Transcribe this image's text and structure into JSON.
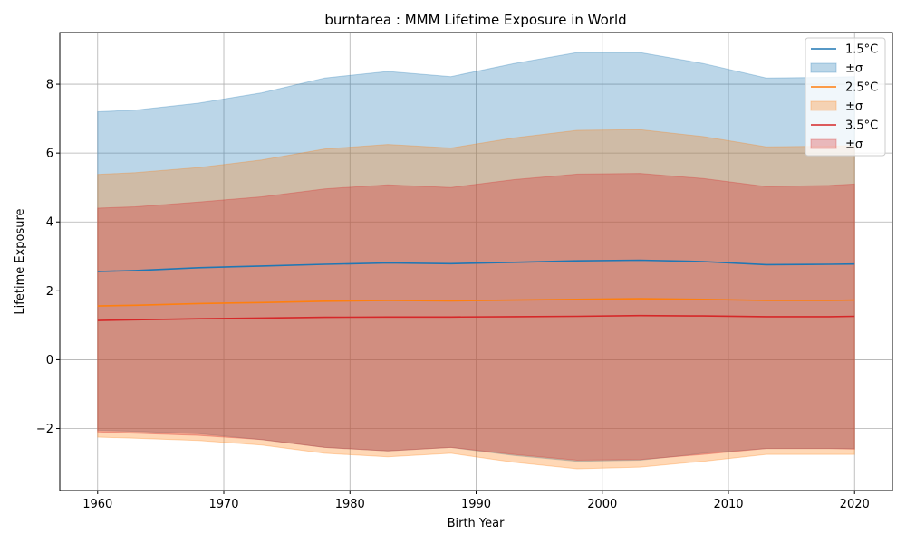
{
  "chart_data": {
    "type": "area",
    "title": "burntarea : MMM Lifetime Exposure in World",
    "xlabel": "Birth Year",
    "ylabel": "Lifetime Exposure",
    "xlim": [
      1957,
      2023
    ],
    "ylim": [
      -3.8,
      9.5
    ],
    "xticks": [
      1960,
      1970,
      1980,
      1990,
      2000,
      2010,
      2020
    ],
    "yticks": [
      -2,
      0,
      2,
      4,
      6,
      8
    ],
    "ytick_labels": [
      "−2",
      "0",
      "2",
      "4",
      "6",
      "8"
    ],
    "grid": true,
    "legend_position": "top-right",
    "x": [
      1960,
      1963,
      1968,
      1973,
      1978,
      1983,
      1988,
      1993,
      1998,
      2003,
      2008,
      2013,
      2018,
      2020
    ],
    "series": [
      {
        "name": "1.5°C",
        "band_name": "±σ",
        "color": "#1f77b4",
        "values": [
          2.56,
          2.59,
          2.67,
          2.72,
          2.77,
          2.81,
          2.79,
          2.83,
          2.87,
          2.89,
          2.85,
          2.76,
          2.77,
          2.78
        ],
        "upper": [
          7.2,
          7.25,
          7.45,
          7.75,
          8.18,
          8.37,
          8.22,
          8.6,
          8.92,
          8.92,
          8.6,
          8.18,
          8.2,
          8.22
        ],
        "lower": [
          -2.05,
          -2.08,
          -2.15,
          -2.32,
          -2.55,
          -2.65,
          -2.55,
          -2.78,
          -2.95,
          -2.92,
          -2.72,
          -2.58,
          -2.58,
          -2.58
        ]
      },
      {
        "name": "2.5°C",
        "band_name": "±σ",
        "color": "#ff7f0e",
        "values": [
          1.56,
          1.58,
          1.63,
          1.66,
          1.7,
          1.72,
          1.71,
          1.73,
          1.75,
          1.77,
          1.75,
          1.72,
          1.72,
          1.73
        ],
        "upper": [
          5.38,
          5.43,
          5.58,
          5.8,
          6.12,
          6.25,
          6.15,
          6.44,
          6.66,
          6.68,
          6.48,
          6.18,
          6.2,
          6.22
        ],
        "lower": [
          -2.25,
          -2.28,
          -2.35,
          -2.48,
          -2.72,
          -2.82,
          -2.72,
          -2.98,
          -3.17,
          -3.12,
          -2.95,
          -2.75,
          -2.75,
          -2.75
        ]
      },
      {
        "name": "3.5°C",
        "band_name": "±σ",
        "color": "#d62728",
        "values": [
          1.14,
          1.16,
          1.19,
          1.21,
          1.23,
          1.24,
          1.24,
          1.25,
          1.26,
          1.28,
          1.27,
          1.25,
          1.25,
          1.26
        ],
        "upper": [
          4.4,
          4.44,
          4.58,
          4.73,
          4.96,
          5.08,
          5.0,
          5.23,
          5.39,
          5.41,
          5.26,
          5.03,
          5.06,
          5.1
        ],
        "lower": [
          -2.1,
          -2.14,
          -2.2,
          -2.32,
          -2.55,
          -2.65,
          -2.55,
          -2.75,
          -2.92,
          -2.9,
          -2.75,
          -2.58,
          -2.58,
          -2.6
        ]
      }
    ]
  }
}
